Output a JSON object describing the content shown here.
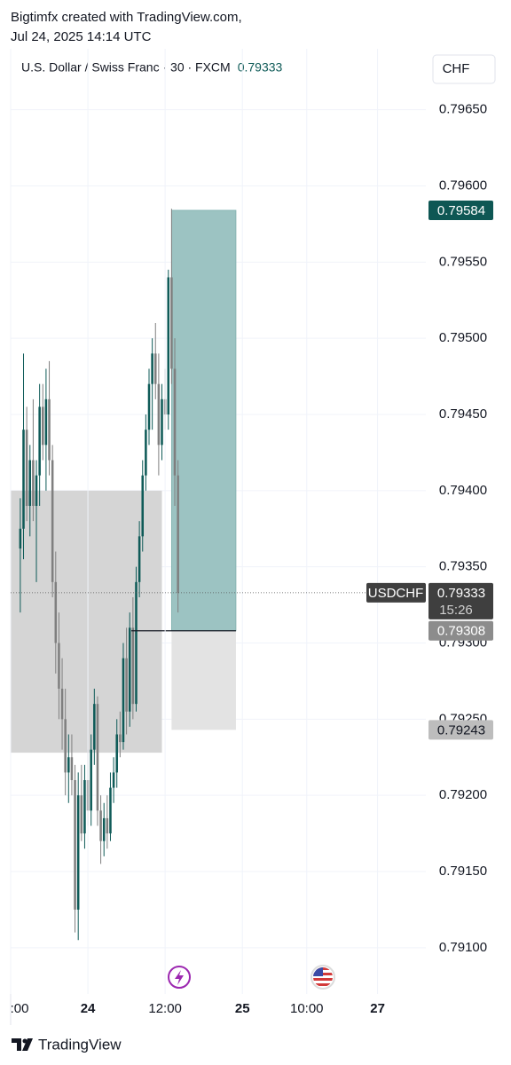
{
  "header": {
    "line1": "Bigtimfx created with TradingView.com,",
    "line2": "Jul 24, 2025 14:14 UTC"
  },
  "footer": {
    "brand": "TradingView"
  },
  "chart_data": {
    "type": "candlestick",
    "title": "U.S. Dollar / Swiss Franc · 30 · FXCM",
    "currency": "CHF",
    "symbol": "USDCHF",
    "last_price": 0.79333,
    "countdown": "15:26",
    "up_color": "#0f5b58",
    "down_color": "#7f7f7f",
    "grid": true,
    "xlim": [
      -3,
      126
    ],
    "ylim": [
      0.7909,
      0.7969
    ],
    "xticks": [
      {
        "value": -3,
        "label": ":00"
      },
      {
        "value": 21,
        "label": "24"
      },
      {
        "value": 45,
        "label": "12:00"
      },
      {
        "value": 69,
        "label": "25"
      },
      {
        "value": 89,
        "label": "10:00"
      },
      {
        "value": 111,
        "label": "27"
      }
    ],
    "yticks": [
      {
        "value": 0.791,
        "label": "0.79100"
      },
      {
        "value": 0.7915,
        "label": "0.79150"
      },
      {
        "value": 0.792,
        "label": "0.79200"
      },
      {
        "value": 0.7925,
        "label": "0.79250"
      },
      {
        "value": 0.793,
        "label": "0.79300"
      },
      {
        "value": 0.7935,
        "label": "0.79350"
      },
      {
        "value": 0.794,
        "label": "0.79400"
      },
      {
        "value": 0.7945,
        "label": "0.79450"
      },
      {
        "value": 0.795,
        "label": "0.79500"
      },
      {
        "value": 0.7955,
        "label": "0.79550"
      },
      {
        "value": 0.796,
        "label": "0.79600"
      },
      {
        "value": 0.7965,
        "label": "0.79650"
      }
    ],
    "open": [
      0.79362,
      0.79375,
      0.7944,
      0.7939,
      0.7942,
      0.7939,
      0.7941,
      0.79455,
      0.7943,
      0.7946,
      0.7942,
      0.7934,
      0.793,
      0.7927,
      0.7925,
      0.79215,
      0.79225,
      0.7921,
      0.79125,
      0.792,
      0.79175,
      0.7921,
      0.7919,
      0.7923,
      0.7926,
      0.7919,
      0.7917,
      0.79185,
      0.79175,
      0.79205,
      0.79215,
      0.7924,
      0.79235,
      0.7929,
      0.79255,
      0.7931,
      0.7926,
      0.7934,
      0.7937,
      0.7941,
      0.7944,
      0.7947,
      0.7949,
      0.7947,
      0.7943,
      0.7946,
      0.7945,
      0.7954,
      0.7948,
      0.7941
    ],
    "high": [
      0.79395,
      0.7949,
      0.79455,
      0.7943,
      0.7946,
      0.7942,
      0.7947,
      0.7947,
      0.7948,
      0.79485,
      0.7943,
      0.7936,
      0.7932,
      0.7929,
      0.7927,
      0.7924,
      0.7924,
      0.7922,
      0.79215,
      0.7922,
      0.7922,
      0.7923,
      0.7924,
      0.7927,
      0.79265,
      0.792,
      0.79195,
      0.792,
      0.79215,
      0.79225,
      0.7925,
      0.79255,
      0.793,
      0.7931,
      0.7932,
      0.7933,
      0.7935,
      0.7938,
      0.7942,
      0.7945,
      0.7948,
      0.795,
      0.7951,
      0.7949,
      0.7947,
      0.7948,
      0.79545,
      0.79585,
      0.795,
      0.7942
    ],
    "low": [
      0.7932,
      0.79355,
      0.7938,
      0.7937,
      0.7938,
      0.7934,
      0.7939,
      0.7942,
      0.794,
      0.7941,
      0.7933,
      0.7928,
      0.7925,
      0.7923,
      0.792,
      0.79195,
      0.792,
      0.7911,
      0.79105,
      0.7917,
      0.79165,
      0.7918,
      0.7918,
      0.7922,
      0.7918,
      0.79155,
      0.7916,
      0.79165,
      0.7917,
      0.79195,
      0.79205,
      0.79225,
      0.7923,
      0.7924,
      0.79245,
      0.7925,
      0.79255,
      0.7933,
      0.7936,
      0.794,
      0.7943,
      0.7944,
      0.7946,
      0.7941,
      0.7942,
      0.7944,
      0.7944,
      0.7947,
      0.7939,
      0.7932
    ],
    "close": [
      0.79375,
      0.7944,
      0.7939,
      0.7942,
      0.7939,
      0.7941,
      0.79455,
      0.7943,
      0.7946,
      0.7942,
      0.7934,
      0.793,
      0.7927,
      0.7925,
      0.79215,
      0.79225,
      0.7921,
      0.79125,
      0.792,
      0.79175,
      0.7921,
      0.7919,
      0.7923,
      0.7926,
      0.7919,
      0.7917,
      0.79185,
      0.79175,
      0.79205,
      0.79215,
      0.7924,
      0.79235,
      0.7929,
      0.79255,
      0.7931,
      0.7926,
      0.7934,
      0.7937,
      0.7941,
      0.7944,
      0.7947,
      0.7949,
      0.7947,
      0.7943,
      0.7946,
      0.7945,
      0.7954,
      0.7948,
      0.7941,
      0.79333
    ],
    "range_box": {
      "x": [
        -3,
        44
      ],
      "y": [
        0.79228,
        0.794
      ],
      "color": "#d5d5d5"
    },
    "position": {
      "x": [
        47,
        67
      ],
      "start": 34.5,
      "entry": 0.79308,
      "target": 0.79584,
      "stop": 0.79243,
      "target_color": "#9cc3c2",
      "stop_color": "#e3e3e3"
    }
  }
}
